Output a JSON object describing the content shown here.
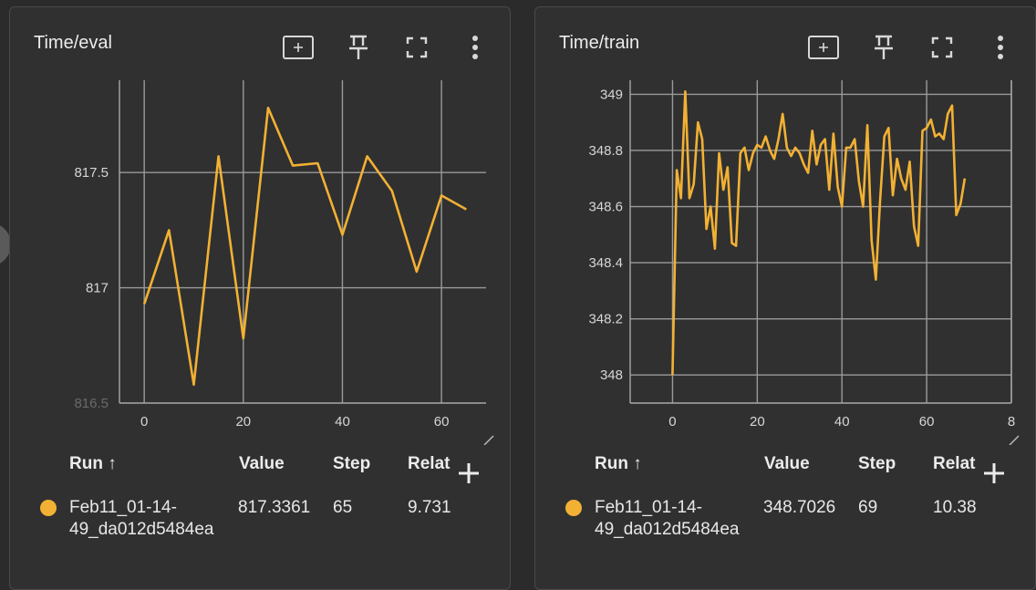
{
  "panels": [
    {
      "title": "Time/eval",
      "table": {
        "headers": {
          "run": "Run ↑",
          "value": "Value",
          "step": "Step",
          "relative": "Relat"
        },
        "row": {
          "run_line1": "Feb11_01-14-",
          "run_line2": "49_da012d5484ea",
          "value": "817.3361",
          "step": "65",
          "relative": "9.731"
        }
      },
      "chart_data": {
        "type": "line",
        "x_ticks": [
          "0",
          "20",
          "40",
          "60"
        ],
        "y_ticks": [
          "816.5",
          "817",
          "817.5"
        ],
        "xlim": [
          -5,
          69
        ],
        "ylim": [
          816.5,
          817.9
        ],
        "series": [
          {
            "color": "#f2b134",
            "x": [
              0,
              5,
              10,
              15,
              20,
              25,
              30,
              35,
              40,
              45,
              50,
              55,
              60,
              65
            ],
            "y": [
              816.93,
              817.25,
              816.58,
              817.57,
              816.78,
              817.78,
              817.53,
              817.54,
              817.23,
              817.57,
              817.42,
              817.07,
              817.4,
              817.34
            ]
          }
        ]
      }
    },
    {
      "title": "Time/train",
      "table": {
        "headers": {
          "run": "Run ↑",
          "value": "Value",
          "step": "Step",
          "relative": "Relat"
        },
        "row": {
          "run_line1": "Feb11_01-14-",
          "run_line2": "49_da012d5484ea",
          "value": "348.7026",
          "step": "69",
          "relative": "10.38"
        }
      },
      "chart_data": {
        "type": "line",
        "x_ticks": [
          "0",
          "20",
          "40",
          "60",
          "8"
        ],
        "y_ticks": [
          "348",
          "348.2",
          "348.4",
          "348.6",
          "348.8",
          "349"
        ],
        "xlim": [
          -10,
          80
        ],
        "ylim": [
          347.9,
          349.05
        ],
        "series": [
          {
            "color": "#f2b134",
            "x": [
              0,
              1,
              2,
              3,
              4,
              5,
              6,
              7,
              8,
              9,
              10,
              11,
              12,
              13,
              14,
              15,
              16,
              17,
              18,
              19,
              20,
              21,
              22,
              23,
              24,
              25,
              26,
              27,
              28,
              29,
              30,
              31,
              32,
              33,
              34,
              35,
              36,
              37,
              38,
              39,
              40,
              41,
              42,
              43,
              44,
              45,
              46,
              47,
              48,
              49,
              50,
              51,
              52,
              53,
              54,
              55,
              56,
              57,
              58,
              59,
              60,
              61,
              62,
              63,
              64,
              65,
              66,
              67,
              68,
              69
            ],
            "y": [
              348.0,
              348.73,
              348.63,
              349.01,
              348.63,
              348.68,
              348.9,
              348.84,
              348.52,
              348.6,
              348.45,
              348.79,
              348.66,
              348.74,
              348.47,
              348.46,
              348.79,
              348.81,
              348.73,
              348.79,
              348.82,
              348.81,
              348.85,
              348.8,
              348.77,
              348.84,
              348.93,
              348.81,
              348.78,
              348.81,
              348.79,
              348.75,
              348.72,
              348.87,
              348.75,
              348.82,
              348.84,
              348.66,
              348.86,
              348.67,
              348.6,
              348.81,
              348.81,
              348.84,
              348.69,
              348.6,
              348.89,
              348.48,
              348.34,
              348.62,
              348.85,
              348.88,
              348.64,
              348.77,
              348.7,
              348.66,
              348.76,
              348.53,
              348.46,
              348.87,
              348.88,
              348.91,
              348.85,
              348.86,
              348.84,
              348.93,
              348.96,
              348.57,
              348.61,
              348.7
            ]
          }
        ]
      }
    }
  ],
  "toolbar": {
    "icons": [
      "fit-domain-icon",
      "pin-icon",
      "fullscreen-icon",
      "more-vert-icon"
    ]
  },
  "colors": {
    "background": "#2b2b2b",
    "card": "#303030",
    "series": "#f2b134",
    "grid": "#9a9a9a"
  }
}
